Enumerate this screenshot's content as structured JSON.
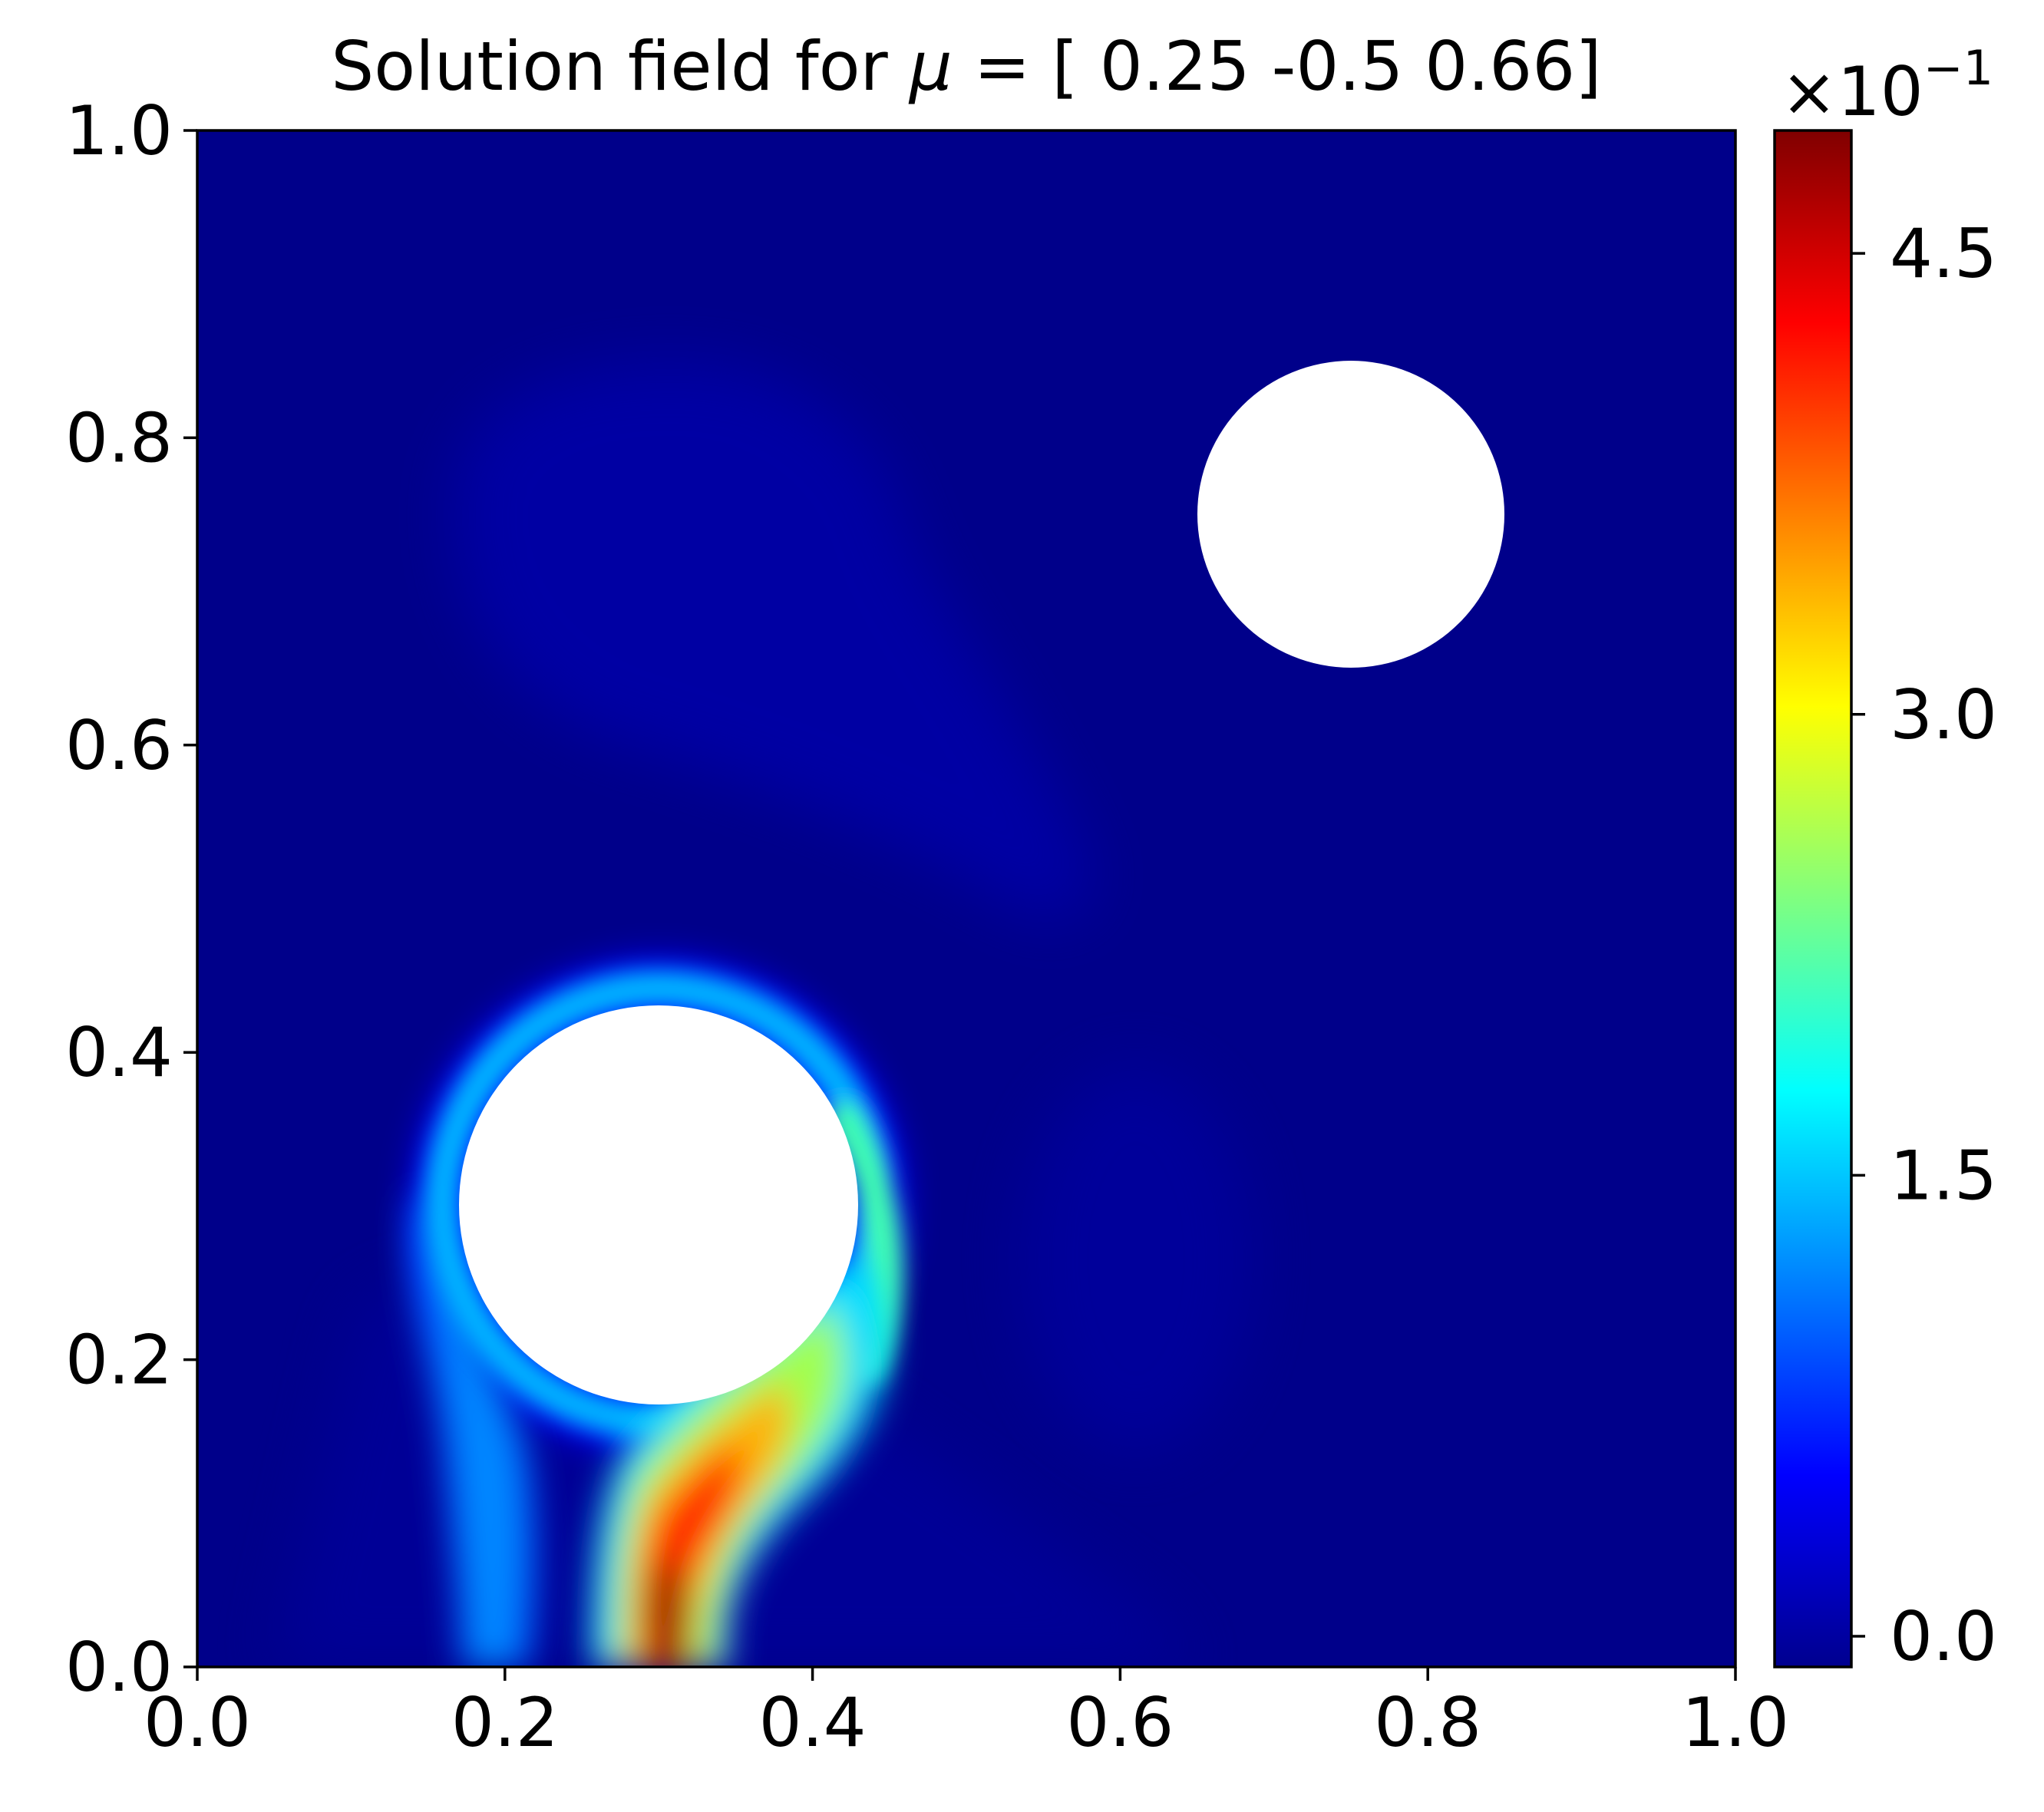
{
  "chart_data": {
    "type": "heatmap",
    "title": {
      "prefix": "Solution field for ",
      "symbol": "μ",
      "suffix": " = [ 0.25 -0.5   0.66]"
    },
    "xlabel": "",
    "ylabel": "",
    "xlim": [
      0.0,
      1.0
    ],
    "ylim": [
      0.0,
      1.0
    ],
    "x_ticks": [
      "0.0",
      "0.2",
      "0.4",
      "0.6",
      "0.8",
      "1.0"
    ],
    "y_ticks": [
      "0.0",
      "0.2",
      "0.4",
      "0.6",
      "0.8",
      "1.0"
    ],
    "grid": false,
    "colormap": "jet",
    "colorbar": {
      "scale_prefix": "×10",
      "scale_exponent": "−1",
      "range": [
        -0.1,
        4.9
      ],
      "ticks": [
        {
          "value": 0.0,
          "label": "0.0"
        },
        {
          "value": 1.5,
          "label": "1.5"
        },
        {
          "value": 3.0,
          "label": "3.0"
        },
        {
          "value": 4.5,
          "label": "4.5"
        }
      ]
    },
    "background_value": 0.0,
    "obstacles": [
      {
        "cx": 0.3,
        "cy": 0.3,
        "r": 0.13
      },
      {
        "cx": 0.75,
        "cy": 0.75,
        "r": 0.1
      }
    ],
    "features": [
      {
        "name": "ring around lower obstacle",
        "peak_value": 1.7
      },
      {
        "name": "left plume",
        "peak_value": 1.3
      },
      {
        "name": "main plume near bottom boundary",
        "x_range": [
          0.26,
          0.42
        ],
        "y_range": [
          0.0,
          0.2
        ],
        "peak_value": 4.9
      },
      {
        "name": "faint upper wake",
        "peak_value": 0.15
      },
      {
        "name": "faint right blob",
        "peak_value": 0.1
      }
    ]
  }
}
